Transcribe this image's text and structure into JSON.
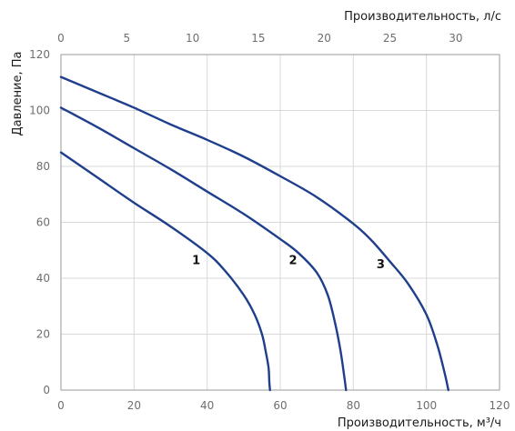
{
  "chart_data": {
    "type": "line",
    "xlabel": "Производительность, м³/ч",
    "x2label": "Производительность, л/с",
    "ylabel": "Давление, Па",
    "xlim": [
      0,
      120
    ],
    "x2lim": [
      0,
      33.33
    ],
    "ylim": [
      0,
      120
    ],
    "xticks": [
      "0",
      "20",
      "40",
      "60",
      "80",
      "100",
      "120"
    ],
    "x2ticks": [
      "0",
      "5",
      "10",
      "15",
      "20",
      "25",
      "30"
    ],
    "yticks": [
      "0",
      "20",
      "40",
      "60",
      "80",
      "100",
      "120"
    ],
    "grid": true,
    "line_color": "#1f3f8c",
    "series": [
      {
        "name": "1",
        "label_at": [
          37,
          45
        ],
        "x": [
          0,
          10,
          20,
          30,
          40,
          45,
          50,
          53,
          55,
          56,
          56.8,
          57,
          57.2
        ],
        "y": [
          85,
          76,
          67,
          58.5,
          49,
          42.5,
          34,
          27,
          20,
          14,
          8,
          3,
          0
        ]
      },
      {
        "name": "2",
        "label_at": [
          63.5,
          45
        ],
        "x": [
          0,
          10,
          20,
          30,
          40,
          50,
          60,
          65,
          70,
          73,
          75,
          76.5,
          77.5,
          78
        ],
        "y": [
          101,
          94,
          86.5,
          79,
          71,
          63,
          54,
          49,
          42,
          34,
          24,
          14,
          5,
          0
        ]
      },
      {
        "name": "3",
        "label_at": [
          87.5,
          43.5
        ],
        "x": [
          0,
          10,
          20,
          30,
          40,
          50,
          60,
          70,
          80,
          85,
          90,
          95,
          100,
          103,
          105,
          106
        ],
        "y": [
          112,
          106.5,
          101,
          95,
          89.5,
          83.5,
          76.5,
          69,
          59.5,
          53.5,
          46,
          38,
          27,
          16,
          6,
          0
        ]
      }
    ]
  }
}
